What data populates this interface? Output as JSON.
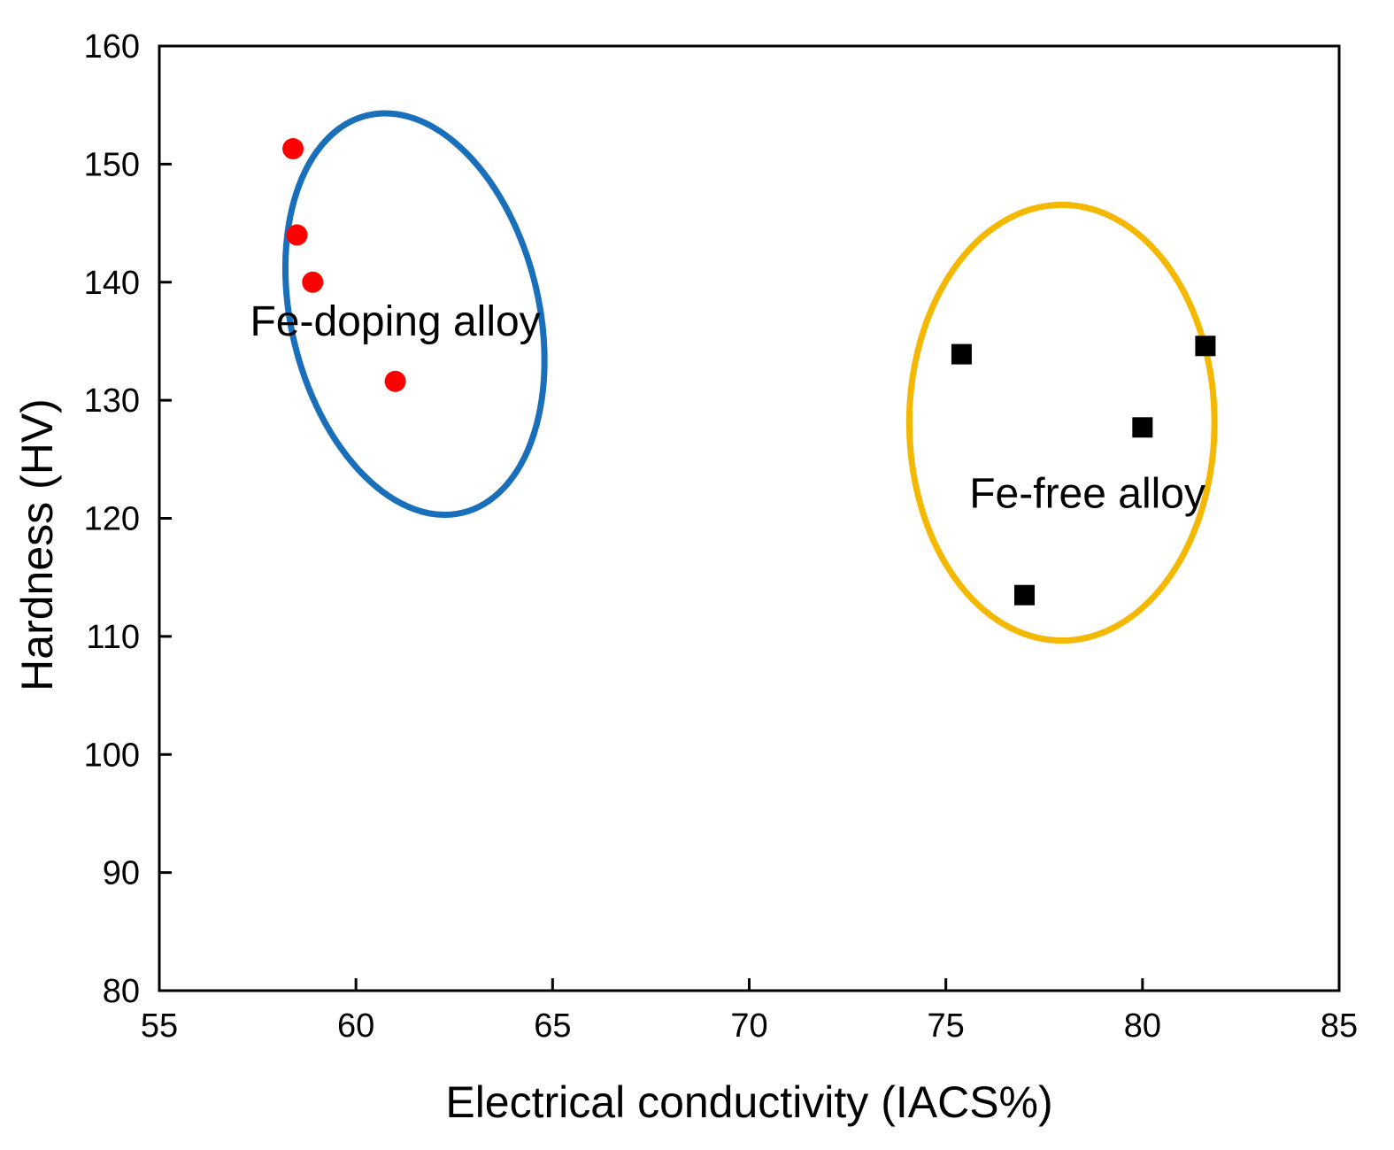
{
  "chart_data": {
    "type": "scatter",
    "title": "",
    "xlabel": "Electrical conductivity (IACS%)",
    "ylabel": "Hardness (HV)",
    "xlim": [
      55,
      85
    ],
    "ylim": [
      80,
      160
    ],
    "xticks": [
      55,
      60,
      65,
      70,
      75,
      80,
      85
    ],
    "yticks": [
      80,
      90,
      100,
      110,
      120,
      130,
      140,
      150,
      160
    ],
    "grid": false,
    "legend": "none",
    "series": [
      {
        "marker": "circle",
        "color": "#ff0000",
        "points": [
          {
            "x": 58.4,
            "y": 151.3
          },
          {
            "x": 58.5,
            "y": 144.0
          },
          {
            "x": 58.9,
            "y": 140.0
          },
          {
            "x": 61.0,
            "y": 131.6
          }
        ]
      },
      {
        "marker": "square",
        "color": "#000000",
        "points": [
          {
            "x": 75.4,
            "y": 133.9
          },
          {
            "x": 77.0,
            "y": 113.5
          },
          {
            "x": 80.0,
            "y": 127.7
          },
          {
            "x": 81.6,
            "y": 134.6
          }
        ]
      }
    ],
    "annotations": [
      {
        "text": "Fe-doping alloy",
        "x": 61.0,
        "y": 135.5,
        "anchor": "middle"
      },
      {
        "text": "Fe-free alloy",
        "x": 78.6,
        "y": 120.9,
        "anchor": "middle"
      }
    ],
    "group_outlines": [
      {
        "shape": "ellipse",
        "color": "#1a6fba",
        "cx": 61.5,
        "cy": 137.3,
        "rx": 3.15,
        "ry": 17.3,
        "tilt_deg": -13.5
      },
      {
        "shape": "ellipse",
        "color": "#f5b800",
        "cx": 77.95,
        "cy": 128.1,
        "rx": 3.88,
        "ry": 18.45,
        "tilt_deg": 0
      }
    ]
  }
}
